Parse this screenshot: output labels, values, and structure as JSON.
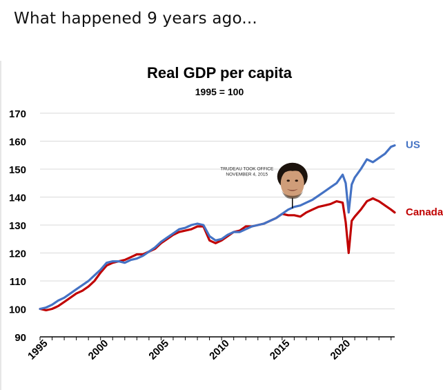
{
  "caption": "What happened 9 years ago...",
  "chart_data": {
    "type": "line",
    "title": "Real GDP per capita",
    "subtitle": "1995 = 100",
    "xlabel": "",
    "ylabel": "",
    "xlim": [
      1995,
      2024.3
    ],
    "ylim": [
      90,
      170
    ],
    "y_ticks": [
      90,
      100,
      110,
      120,
      130,
      140,
      150,
      160,
      170
    ],
    "x_tick_labels": [
      "1995",
      "2000",
      "2005",
      "2010",
      "2015",
      "2020"
    ],
    "grid": "horizontal",
    "annotation": {
      "text_line1": "TRUDEAU TOOK OFFICE",
      "text_line2": "NOVEMBER 4, 2015",
      "x": 2015.85,
      "y": 136,
      "image": "justin-trudeau-portrait"
    },
    "series": [
      {
        "name": "US",
        "color": "#4472C4",
        "points": [
          [
            1995.0,
            100
          ],
          [
            1995.5,
            100.5
          ],
          [
            1996.0,
            101.5
          ],
          [
            1996.5,
            103
          ],
          [
            1997.0,
            104
          ],
          [
            1997.5,
            105.5
          ],
          [
            1998.0,
            107
          ],
          [
            1998.5,
            108.5
          ],
          [
            1999.0,
            110
          ],
          [
            1999.5,
            112
          ],
          [
            2000.0,
            114
          ],
          [
            2000.5,
            116.5
          ],
          [
            2001.0,
            117
          ],
          [
            2001.5,
            117
          ],
          [
            2002.0,
            116.5
          ],
          [
            2002.5,
            117.5
          ],
          [
            2003.0,
            118
          ],
          [
            2003.5,
            119
          ],
          [
            2004.0,
            120.5
          ],
          [
            2004.5,
            122
          ],
          [
            2005.0,
            124
          ],
          [
            2005.5,
            125.5
          ],
          [
            2006.0,
            127
          ],
          [
            2006.5,
            128.5
          ],
          [
            2007.0,
            129
          ],
          [
            2007.5,
            130
          ],
          [
            2008.0,
            130.5
          ],
          [
            2008.5,
            130
          ],
          [
            2009.0,
            126
          ],
          [
            2009.5,
            124.5
          ],
          [
            2010.0,
            125
          ],
          [
            2010.5,
            126.5
          ],
          [
            2011.0,
            127.5
          ],
          [
            2011.5,
            127.5
          ],
          [
            2012.0,
            128.5
          ],
          [
            2012.5,
            129.5
          ],
          [
            2013.0,
            130
          ],
          [
            2013.5,
            130.5
          ],
          [
            2014.0,
            131.5
          ],
          [
            2014.5,
            132.5
          ],
          [
            2015.0,
            134
          ],
          [
            2015.5,
            135.5
          ],
          [
            2016.0,
            136.5
          ],
          [
            2016.5,
            137
          ],
          [
            2017.0,
            138
          ],
          [
            2017.5,
            139
          ],
          [
            2018.0,
            140.5
          ],
          [
            2018.5,
            142
          ],
          [
            2019.0,
            143.5
          ],
          [
            2019.5,
            145
          ],
          [
            2020.0,
            148
          ],
          [
            2020.25,
            145
          ],
          [
            2020.5,
            134.5
          ],
          [
            2020.75,
            144.5
          ],
          [
            2021.0,
            147
          ],
          [
            2021.5,
            150
          ],
          [
            2022.0,
            153.5
          ],
          [
            2022.5,
            152.5
          ],
          [
            2023.0,
            154
          ],
          [
            2023.5,
            155.5
          ],
          [
            2024.0,
            158
          ],
          [
            2024.3,
            158.5
          ]
        ]
      },
      {
        "name": "Canada",
        "color": "#C00000",
        "points": [
          [
            1995.0,
            100
          ],
          [
            1995.5,
            99.5
          ],
          [
            1996.0,
            100
          ],
          [
            1996.5,
            101
          ],
          [
            1997.0,
            102.5
          ],
          [
            1997.5,
            104
          ],
          [
            1998.0,
            105.5
          ],
          [
            1998.5,
            106.5
          ],
          [
            1999.0,
            108
          ],
          [
            1999.5,
            110
          ],
          [
            2000.0,
            113
          ],
          [
            2000.5,
            115.5
          ],
          [
            2001.0,
            116.5
          ],
          [
            2001.5,
            117
          ],
          [
            2002.0,
            117.5
          ],
          [
            2002.5,
            118.5
          ],
          [
            2003.0,
            119.5
          ],
          [
            2003.5,
            119.5
          ],
          [
            2004.0,
            120.5
          ],
          [
            2004.5,
            121.5
          ],
          [
            2005.0,
            123.5
          ],
          [
            2005.5,
            125
          ],
          [
            2006.0,
            126.5
          ],
          [
            2006.5,
            127.5
          ],
          [
            2007.0,
            128
          ],
          [
            2007.5,
            128.5
          ],
          [
            2008.0,
            129.5
          ],
          [
            2008.5,
            129.5
          ],
          [
            2009.0,
            124.5
          ],
          [
            2009.5,
            123.5
          ],
          [
            2010.0,
            124.5
          ],
          [
            2010.5,
            126
          ],
          [
            2011.0,
            127.5
          ],
          [
            2011.5,
            128
          ],
          [
            2012.0,
            129.5
          ],
          [
            2012.5,
            129.5
          ],
          [
            2013.0,
            130
          ],
          [
            2013.5,
            130.5
          ],
          [
            2014.0,
            131.5
          ],
          [
            2014.5,
            132.5
          ],
          [
            2015.0,
            134
          ],
          [
            2015.5,
            133.5
          ],
          [
            2016.0,
            133.5
          ],
          [
            2016.5,
            133
          ],
          [
            2017.0,
            134.5
          ],
          [
            2017.5,
            135.5
          ],
          [
            2018.0,
            136.5
          ],
          [
            2018.5,
            137
          ],
          [
            2019.0,
            137.5
          ],
          [
            2019.5,
            138.5
          ],
          [
            2020.0,
            138
          ],
          [
            2020.25,
            131
          ],
          [
            2020.5,
            120
          ],
          [
            2020.75,
            131.5
          ],
          [
            2021.0,
            133
          ],
          [
            2021.5,
            135.5
          ],
          [
            2022.0,
            138.5
          ],
          [
            2022.5,
            139.5
          ],
          [
            2023.0,
            138.5
          ],
          [
            2023.5,
            137
          ],
          [
            2024.0,
            135.5
          ],
          [
            2024.3,
            134.5
          ]
        ]
      }
    ]
  }
}
